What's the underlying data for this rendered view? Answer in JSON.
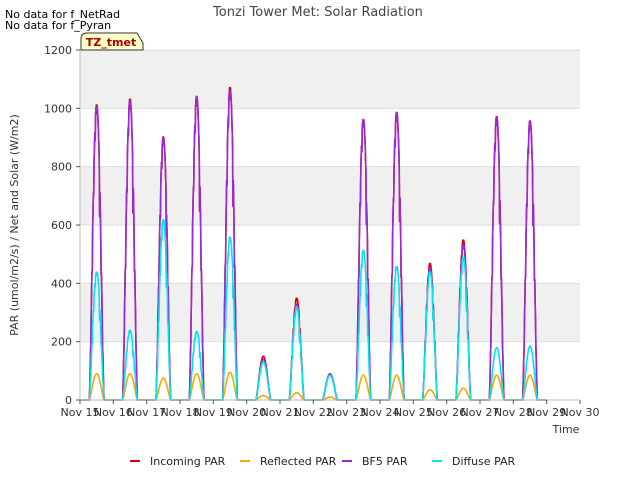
{
  "notices": [
    "No data for f_NetRad",
    "No data for f_Pyran"
  ],
  "badge": "TZ_tmet",
  "chart_data": {
    "type": "line",
    "title": "Tonzi Tower Met: Solar Radiation",
    "xlabel": "Time",
    "ylabel": "PAR (umol/m2/s) / Net and Solar (W/m2)",
    "xlim": [
      15,
      30
    ],
    "ylim": [
      0,
      1200
    ],
    "x_ticks": [
      15,
      16,
      17,
      18,
      19,
      20,
      21,
      22,
      23,
      24,
      25,
      26,
      27,
      28,
      29,
      30
    ],
    "x_tick_labels": [
      "Nov 15",
      "Nov 16",
      "Nov 17",
      "Nov 18",
      "Nov 19",
      "Nov 20",
      "Nov 21",
      "Nov 22",
      "Nov 23",
      "Nov 24",
      "Nov 25",
      "Nov 26",
      "Nov 27",
      "Nov 28",
      "Nov 29",
      "Nov 30"
    ],
    "y_ticks": [
      0,
      200,
      400,
      600,
      800,
      1000,
      1200
    ],
    "y_tick_labels": [
      "0",
      "200",
      "400",
      "600",
      "800",
      "1000",
      "1200"
    ],
    "band_color": "#f0f0f0",
    "day_centers": [
      15.5,
      16.5,
      17.5,
      18.5,
      19.5,
      20.5,
      21.5,
      22.5,
      23.5,
      24.5,
      25.5,
      26.5,
      27.5,
      28.5
    ],
    "series": [
      {
        "name": "Incoming PAR",
        "color": "#dd0000",
        "daily_peaks": [
          1015,
          1035,
          905,
          1040,
          1075,
          150,
          350,
          90,
          965,
          985,
          470,
          550,
          975,
          960
        ]
      },
      {
        "name": "Reflected PAR",
        "color": "#ffa500",
        "daily_peaks": [
          90,
          90,
          75,
          90,
          95,
          15,
          25,
          10,
          85,
          85,
          35,
          40,
          85,
          85
        ]
      },
      {
        "name": "BF5 PAR",
        "color": "#9a28d8",
        "daily_peaks": [
          1010,
          1030,
          900,
          1045,
          1065,
          140,
          330,
          90,
          965,
          990,
          455,
          535,
          970,
          960
        ]
      },
      {
        "name": "Diffuse PAR",
        "color": "#00e5ee",
        "daily_peaks": [
          440,
          240,
          620,
          235,
          560,
          130,
          320,
          85,
          515,
          460,
          440,
          490,
          180,
          185
        ]
      }
    ],
    "legend": [
      "Incoming PAR",
      "Reflected PAR",
      "BF5 PAR",
      "Diffuse PAR"
    ],
    "legend_position": "bottom"
  }
}
